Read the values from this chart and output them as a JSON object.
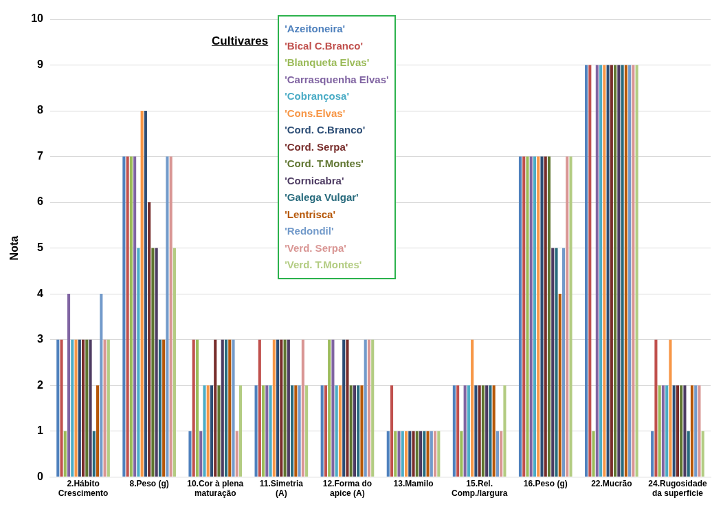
{
  "chart_data": {
    "type": "bar",
    "ylabel": "Nota",
    "legend_title": "Cultivares",
    "categories": [
      "2.Hábito Crescimento",
      "8.Peso (g)",
      "10.Cor à plena maturação",
      "11.Simetria (A)",
      "12.Forma do apice (A)",
      "13.Mamilo",
      "15.Rel. Comp./largura",
      "16.Peso (g)",
      "22.Mucrão",
      "24.Rugosidade da superficie"
    ],
    "series": [
      {
        "name": "'Azeitoneira'",
        "color": "#4f81bd",
        "values": [
          3,
          7,
          1,
          2,
          2,
          1,
          2,
          7,
          9,
          1
        ]
      },
      {
        "name": "'Bical C.Branco'",
        "color": "#c0504d",
        "values": [
          3,
          7,
          3,
          3,
          2,
          2,
          2,
          7,
          9,
          3
        ]
      },
      {
        "name": "'Blanqueta Elvas'",
        "color": "#9bbb59",
        "values": [
          1,
          7,
          3,
          2,
          3,
          1,
          1,
          7,
          1,
          2
        ]
      },
      {
        "name": "'Carrasquenha Elvas'",
        "color": "#8064a2",
        "values": [
          4,
          7,
          1,
          2,
          3,
          1,
          2,
          7,
          9,
          2
        ]
      },
      {
        "name": "'Cobrançosa'",
        "color": "#4bacc6",
        "values": [
          3,
          5,
          2,
          2,
          2,
          1,
          2,
          7,
          9,
          2
        ]
      },
      {
        "name": "'Cons.Elvas'",
        "color": "#f79646",
        "values": [
          3,
          8,
          2,
          3,
          2,
          1,
          3,
          7,
          9,
          3
        ]
      },
      {
        "name": "'Cord. C.Branco'",
        "color": "#2c4d75",
        "values": [
          3,
          8,
          2,
          3,
          3,
          1,
          2,
          7,
          9,
          2
        ]
      },
      {
        "name": "'Cord. Serpa'",
        "color": "#772c2a",
        "values": [
          3,
          6,
          3,
          3,
          3,
          1,
          2,
          7,
          9,
          2
        ]
      },
      {
        "name": "'Cord. T.Montes'",
        "color": "#5f7530",
        "values": [
          3,
          5,
          2,
          3,
          2,
          1,
          2,
          7,
          9,
          2
        ]
      },
      {
        "name": "'Cornicabra'",
        "color": "#4d3b62",
        "values": [
          3,
          5,
          3,
          3,
          2,
          1,
          2,
          5,
          9,
          2
        ]
      },
      {
        "name": "'Galega Vulgar'",
        "color": "#276a7c",
        "values": [
          1,
          3,
          3,
          2,
          2,
          1,
          2,
          5,
          9,
          1
        ]
      },
      {
        "name": "'Lentrisca'",
        "color": "#b65708",
        "values": [
          2,
          3,
          3,
          2,
          2,
          1,
          2,
          4,
          9,
          2
        ]
      },
      {
        "name": "'Redondil'",
        "color": "#729aca",
        "values": [
          4,
          7,
          3,
          2,
          3,
          1,
          1,
          5,
          9,
          2
        ]
      },
      {
        "name": "'Verd. Serpa'",
        "color": "#d99694",
        "values": [
          3,
          7,
          1,
          3,
          3,
          1,
          1,
          7,
          9,
          2
        ]
      },
      {
        "name": "'Verd. T.Montes'",
        "color": "#b3cc82",
        "values": [
          3,
          5,
          2,
          2,
          3,
          1,
          2,
          7,
          9,
          1
        ]
      }
    ],
    "ylim": [
      0,
      10
    ],
    "yticks": [
      0,
      1,
      2,
      3,
      4,
      5,
      6,
      7,
      8,
      9,
      10
    ],
    "grid": "y",
    "legend": "top left"
  }
}
